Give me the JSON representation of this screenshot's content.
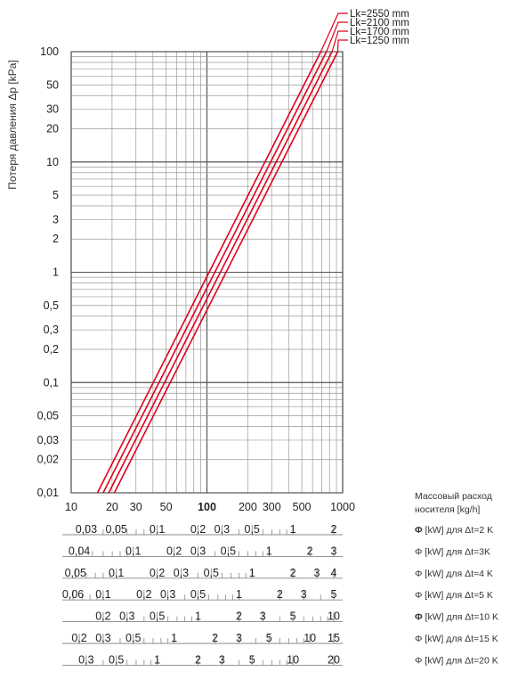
{
  "chart_data": {
    "type": "line",
    "ylabel": "Потеря давления Δp [kPa]",
    "xscale": "log",
    "yscale": "log",
    "xlim": [
      10,
      1000
    ],
    "ylim": [
      0.01,
      100
    ],
    "grid": true,
    "legend_position": "top-right",
    "x_tick_labels": [
      {
        "v": 10,
        "t": "10"
      },
      {
        "v": 20,
        "t": "20"
      },
      {
        "v": 30,
        "t": "30"
      },
      {
        "v": 50,
        "t": "50"
      },
      {
        "v": 100,
        "t": "100",
        "bold": true
      },
      {
        "v": 200,
        "t": "200"
      },
      {
        "v": 300,
        "t": "300"
      },
      {
        "v": 500,
        "t": "500"
      },
      {
        "v": 1000,
        "t": "1000"
      }
    ],
    "y_tick_labels": [
      {
        "v": 100,
        "t": "100"
      },
      {
        "v": 50,
        "t": "50"
      },
      {
        "v": 30,
        "t": "30"
      },
      {
        "v": 20,
        "t": "20"
      },
      {
        "v": 10,
        "t": "10"
      },
      {
        "v": 5,
        "t": "5"
      },
      {
        "v": 3,
        "t": "3"
      },
      {
        "v": 2,
        "t": "2"
      },
      {
        "v": 1,
        "t": "1"
      },
      {
        "v": 0.5,
        "t": "0,5"
      },
      {
        "v": 0.3,
        "t": "0,3"
      },
      {
        "v": 0.2,
        "t": "0,2"
      },
      {
        "v": 0.1,
        "t": "0,1"
      },
      {
        "v": 0.05,
        "t": "0,05"
      },
      {
        "v": 0.03,
        "t": "0,03"
      },
      {
        "v": 0.02,
        "t": "0,02"
      },
      {
        "v": 0.01,
        "t": "0,01"
      }
    ],
    "series": [
      {
        "name": "Lk=2550 mm",
        "color": "#e0001a",
        "x": [
          15.6,
          690
        ],
        "y": [
          0.01,
          100
        ]
      },
      {
        "name": "Lk=2100 mm",
        "color": "#e0001a",
        "x": [
          17.2,
          760
        ],
        "y": [
          0.01,
          100
        ]
      },
      {
        "name": "Lk=1700 mm",
        "color": "#e0001a",
        "x": [
          18.9,
          835
        ],
        "y": [
          0.01,
          100
        ]
      },
      {
        "name": "Lk=1250 mm",
        "color": "#e0001a",
        "x": [
          20.8,
          920
        ],
        "y": [
          0.01,
          100
        ]
      }
    ],
    "secondary_axes_title": "Массовый расход носителя  [kg/h]",
    "secondary_axes": [
      {
        "label_prefix": "Φ",
        "label_rest": " [kW] для Δt=2 K",
        "prefix_bold": true,
        "factor": 2.3256,
        "labels": [
          {
            "v": 0.03,
            "t": "0,03"
          },
          {
            "v": 0.05,
            "t": "0,05"
          },
          {
            "v": 0.1,
            "t": "0,1"
          },
          {
            "v": 0.2,
            "t": "0,2"
          },
          {
            "v": 0.3,
            "t": "0,3"
          },
          {
            "v": 0.5,
            "t": "0,5"
          },
          {
            "v": 1,
            "t": "1"
          },
          {
            "v": 2,
            "t": "2"
          }
        ],
        "minor": [
          0.04,
          0.06,
          0.07,
          0.08,
          0.09,
          0.4,
          0.6,
          0.7,
          0.8,
          0.9
        ]
      },
      {
        "label_prefix": "Φ",
        "label_rest": " [kW] для Δt=3K",
        "prefix_bold": false,
        "factor": 3.4884,
        "labels": [
          {
            "v": 0.04,
            "t": "0,04"
          },
          {
            "v": 0.1,
            "t": "0,1"
          },
          {
            "v": 0.2,
            "t": "0,2"
          },
          {
            "v": 0.3,
            "t": "0,3"
          },
          {
            "v": 0.5,
            "t": "0,5"
          },
          {
            "v": 1,
            "t": "1"
          },
          {
            "v": 2,
            "t": "2"
          },
          {
            "v": 3,
            "t": "3"
          }
        ],
        "minor": [
          0.05,
          0.06,
          0.07,
          0.08,
          0.09,
          0.4,
          0.6,
          0.7,
          0.8,
          0.9
        ]
      },
      {
        "label_prefix": "Φ",
        "label_rest": " [kW] для Δt=4 K",
        "prefix_bold": false,
        "factor": 4.6512,
        "labels": [
          {
            "v": 0.05,
            "t": "0,05"
          },
          {
            "v": 0.1,
            "t": "0,1"
          },
          {
            "v": 0.2,
            "t": "0,2"
          },
          {
            "v": 0.3,
            "t": "0,3"
          },
          {
            "v": 0.5,
            "t": "0,5"
          },
          {
            "v": 1,
            "t": "1"
          },
          {
            "v": 2,
            "t": "2"
          },
          {
            "v": 3,
            "t": "3"
          },
          {
            "v": 4,
            "t": "4"
          }
        ],
        "minor": [
          0.06,
          0.07,
          0.08,
          0.09,
          0.4,
          0.6,
          0.7,
          0.8,
          0.9
        ]
      },
      {
        "label_prefix": "Φ",
        "label_rest": " [kW] для Δt=5 K",
        "prefix_bold": false,
        "factor": 5.814,
        "labels": [
          {
            "v": 0.06,
            "t": "0,06"
          },
          {
            "v": 0.1,
            "t": "0,1"
          },
          {
            "v": 0.2,
            "t": "0,2"
          },
          {
            "v": 0.3,
            "t": "0,3"
          },
          {
            "v": 0.5,
            "t": "0,5"
          },
          {
            "v": 1,
            "t": "1"
          },
          {
            "v": 2,
            "t": "2"
          },
          {
            "v": 3,
            "t": "3"
          },
          {
            "v": 5,
            "t": "5"
          }
        ],
        "minor": [
          0.07,
          0.08,
          0.09,
          0.4,
          0.6,
          0.7,
          0.8,
          0.9,
          4
        ]
      },
      {
        "label_prefix": "Φ",
        "label_rest": " [kW] для Δt=10 K",
        "prefix_bold": true,
        "factor": 11.628,
        "labels": [
          {
            "v": 0.2,
            "t": "0,2"
          },
          {
            "v": 0.3,
            "t": "0,3"
          },
          {
            "v": 0.5,
            "t": "0,5"
          },
          {
            "v": 1,
            "t": "1"
          },
          {
            "v": 2,
            "t": "2"
          },
          {
            "v": 3,
            "t": "3"
          },
          {
            "v": 5,
            "t": "5"
          },
          {
            "v": 10,
            "t": "10"
          }
        ],
        "minor": [
          0.4,
          0.6,
          0.7,
          0.8,
          0.9,
          4,
          6,
          7,
          8,
          9
        ]
      },
      {
        "label_prefix": "Φ",
        "label_rest": " [kW] для Δt=15 K",
        "prefix_bold": false,
        "factor": 17.442,
        "labels": [
          {
            "v": 0.2,
            "t": "0,2"
          },
          {
            "v": 0.3,
            "t": "0,3"
          },
          {
            "v": 0.5,
            "t": "0,5"
          },
          {
            "v": 1,
            "t": "1"
          },
          {
            "v": 2,
            "t": "2"
          },
          {
            "v": 3,
            "t": "3"
          },
          {
            "v": 5,
            "t": "5"
          },
          {
            "v": 10,
            "t": "10"
          },
          {
            "v": 15,
            "t": "15"
          }
        ],
        "minor": [
          0.4,
          0.6,
          0.7,
          0.8,
          0.9,
          4,
          6,
          7,
          8,
          9
        ]
      },
      {
        "label_prefix": "Φ",
        "label_rest": " [kW] для Δt=20 K",
        "prefix_bold": false,
        "factor": 23.256,
        "labels": [
          {
            "v": 0.3,
            "t": "0,3"
          },
          {
            "v": 0.5,
            "t": "0,5"
          },
          {
            "v": 1,
            "t": "1"
          },
          {
            "v": 2,
            "t": "2"
          },
          {
            "v": 3,
            "t": "3"
          },
          {
            "v": 5,
            "t": "5"
          },
          {
            "v": 10,
            "t": "10"
          },
          {
            "v": 20,
            "t": "20"
          }
        ],
        "minor": [
          0.4,
          0.6,
          0.7,
          0.8,
          0.9,
          4,
          6,
          7,
          8,
          9
        ]
      }
    ]
  }
}
